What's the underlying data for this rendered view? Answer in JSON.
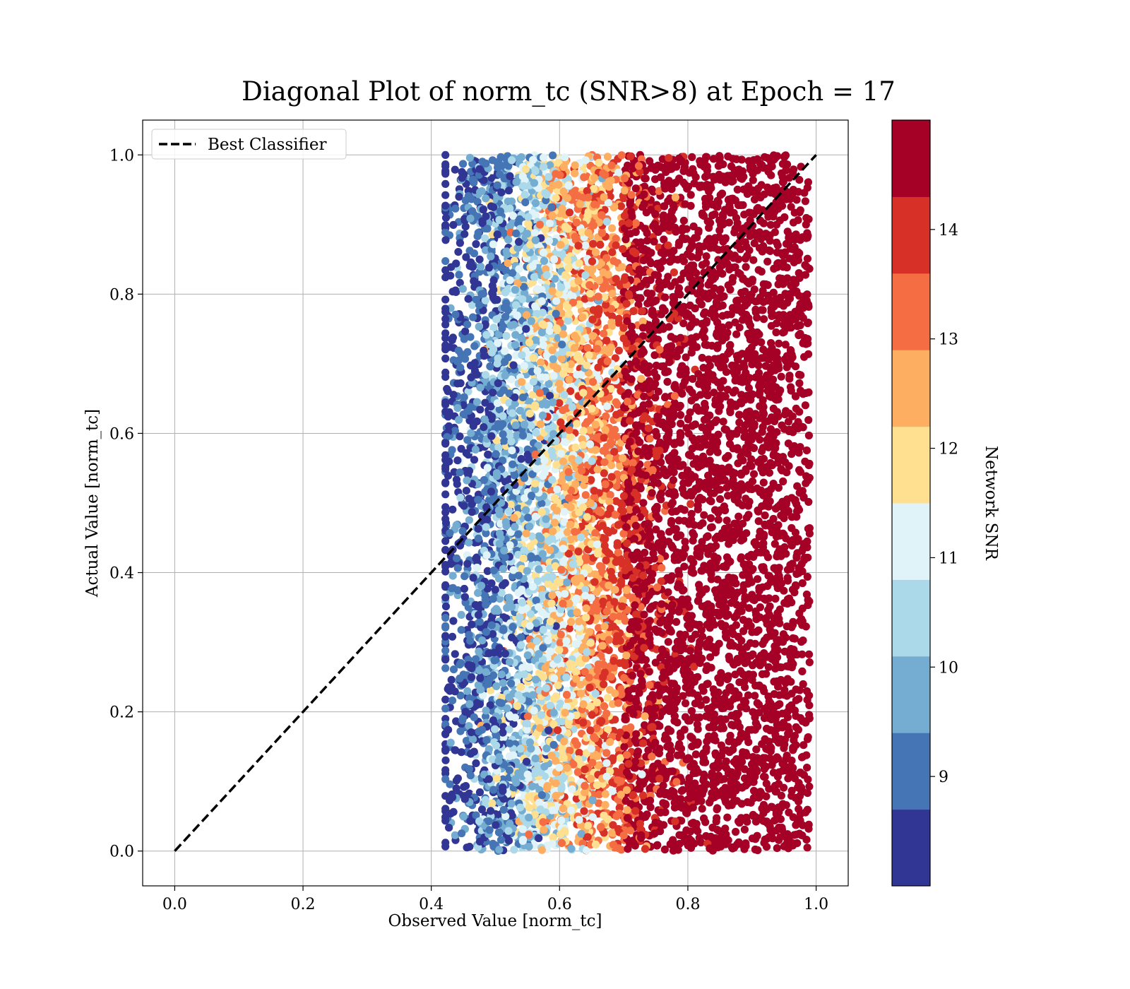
{
  "chart_data": {
    "type": "scatter",
    "title": "Diagonal Plot of norm_tc (SNR>8) at Epoch = 17",
    "xlabel": "Observed Value [norm_tc]",
    "ylabel": "Actual Value [norm_tc]",
    "xlim": [
      -0.05,
      1.05
    ],
    "ylim": [
      -0.05,
      1.05
    ],
    "xticks": [
      "0.0",
      "0.2",
      "0.4",
      "0.6",
      "0.8",
      "1.0"
    ],
    "xtick_values": [
      0.0,
      0.2,
      0.4,
      0.6,
      0.8,
      1.0
    ],
    "yticks": [
      "0.0",
      "0.2",
      "0.4",
      "0.6",
      "0.8",
      "1.0"
    ],
    "ytick_values": [
      0.0,
      0.2,
      0.4,
      0.6,
      0.8,
      1.0
    ],
    "grid": true,
    "legend": {
      "placement": "upper-left",
      "entries": [
        {
          "label": "Best Classifier",
          "style": "black-dashed-line"
        }
      ]
    },
    "reference_line": {
      "name": "Best Classifier",
      "x": [
        0.0,
        1.0
      ],
      "y": [
        0.0,
        1.0
      ],
      "color": "#000000",
      "dash": true
    },
    "point_cloud": {
      "x_range": [
        0.41,
        0.99
      ],
      "y_range": [
        0.0,
        1.0
      ],
      "color_trend": "SNR rises with observed value: low SNR (blue) near x 0.42-0.55, mid SNR (light/yellow) near 0.55-0.68, high SNR (dark red) from 0.70 to 0.98",
      "x_by_snr_band": [
        {
          "snr": 8.5,
          "x_mean": 0.47
        },
        {
          "snr": 9.0,
          "x_mean": 0.5
        },
        {
          "snr": 10.0,
          "x_mean": 0.53
        },
        {
          "snr": 10.5,
          "x_mean": 0.56
        },
        {
          "snr": 11.0,
          "x_mean": 0.58
        },
        {
          "snr": 12.0,
          "x_mean": 0.6
        },
        {
          "snr": 12.5,
          "x_mean": 0.63
        },
        {
          "snr": 13.0,
          "x_mean": 0.66
        },
        {
          "snr": 14.0,
          "x_mean": 0.69
        },
        {
          "snr": 14.5,
          "x_mean": 0.85
        }
      ]
    },
    "colorbar": {
      "label": "Network SNR",
      "ticks": [
        "9",
        "10",
        "11",
        "12",
        "13",
        "14"
      ],
      "tick_values": [
        9,
        10,
        11,
        12,
        13,
        14
      ],
      "range": [
        8.0,
        15.0
      ],
      "bins": [
        {
          "from": 8.0,
          "to": 8.7,
          "color": "#313695"
        },
        {
          "from": 8.7,
          "to": 9.4,
          "color": "#4575b4"
        },
        {
          "from": 9.4,
          "to": 10.1,
          "color": "#74add1"
        },
        {
          "from": 10.1,
          "to": 10.8,
          "color": "#abd9e9"
        },
        {
          "from": 10.8,
          "to": 11.5,
          "color": "#e0f3f8"
        },
        {
          "from": 11.5,
          "to": 12.2,
          "color": "#fee090"
        },
        {
          "from": 12.2,
          "to": 12.9,
          "color": "#fdae61"
        },
        {
          "from": 12.9,
          "to": 13.6,
          "color": "#f46d43"
        },
        {
          "from": 13.6,
          "to": 14.3,
          "color": "#d73027"
        },
        {
          "from": 14.3,
          "to": 15.0,
          "color": "#a50026"
        }
      ]
    }
  }
}
